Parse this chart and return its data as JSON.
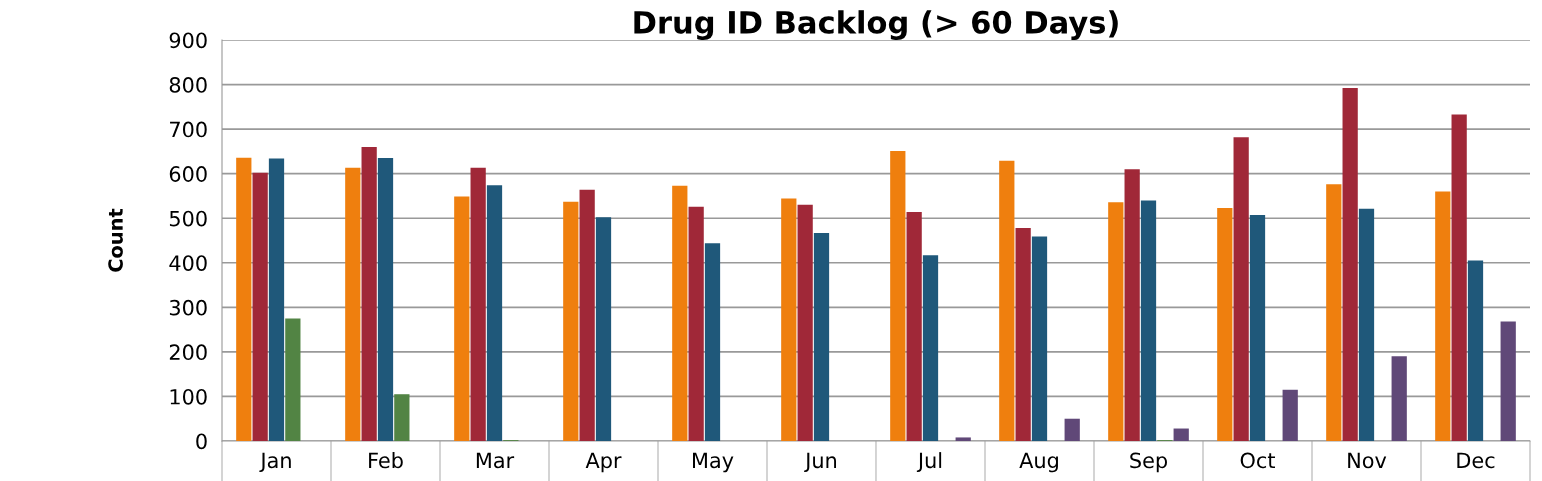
{
  "chart_data": {
    "type": "bar",
    "title": "Drug ID Backlog (> 60 Days)",
    "ylabel": "Count",
    "categories": [
      "Jan",
      "Feb",
      "Mar",
      "Apr",
      "May",
      "Jun",
      "Jul",
      "Aug",
      "Sep",
      "Oct",
      "Nov",
      "Dec"
    ],
    "series": [
      {
        "color": "#ef7f0e",
        "values": [
          636,
          613,
          549,
          537,
          573,
          544,
          651,
          629,
          536,
          523,
          576,
          560
        ]
      },
      {
        "color": "#a02838",
        "values": [
          602,
          660,
          613,
          564,
          526,
          530,
          514,
          478,
          610,
          682,
          792,
          733
        ]
      },
      {
        "color": "#1f587a",
        "values": [
          634,
          635,
          574,
          502,
          444,
          467,
          417,
          459,
          540,
          507,
          521,
          405
        ]
      },
      {
        "color": "#528444",
        "values": [
          275,
          105,
          2,
          null,
          null,
          null,
          null,
          null,
          2,
          null,
          null,
          null
        ]
      },
      {
        "color": "#604878",
        "values": [
          null,
          null,
          null,
          null,
          null,
          null,
          8,
          50,
          28,
          115,
          190,
          268
        ]
      }
    ],
    "ylim": [
      0,
      900
    ],
    "yticks": [
      0,
      100,
      200,
      300,
      400,
      500,
      600,
      700,
      800,
      900
    ],
    "grid": "y"
  }
}
